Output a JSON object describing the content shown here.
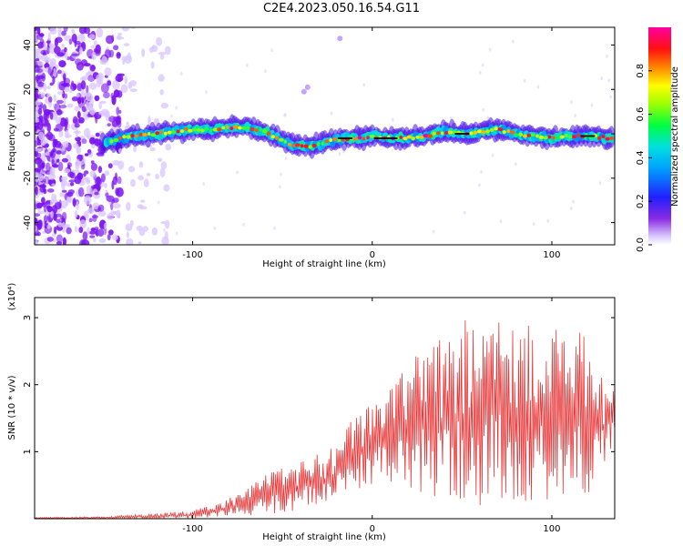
{
  "title": "C2E4.2023.050.16.54.G11",
  "colors": {
    "snr_line": "#e8383a",
    "axis": "#000000",
    "scatter_noise": "#7a12f0"
  },
  "chart_data": [
    {
      "type": "heatmap",
      "xlabel": "Height of straight line (km)",
      "ylabel": "Frequency (Hz)",
      "xlim": [
        -188,
        135
      ],
      "ylim": [
        -50,
        48
      ],
      "xticks": [
        -100,
        0,
        100
      ],
      "yticks": [
        -40,
        -20,
        0,
        20,
        40
      ],
      "colorbar": {
        "label": "Normalized spectral amplitude",
        "range": [
          0.0,
          1.0
        ],
        "ticks": [
          0.0,
          0.2,
          0.4,
          0.6,
          0.8
        ],
        "colormap": "rainbow (purple → blue → cyan → green → yellow → orange → red → magenta)"
      },
      "ridge_center_hz": [
        [
          -148,
          -4
        ],
        [
          -140,
          -2
        ],
        [
          -130,
          -1
        ],
        [
          -120,
          0
        ],
        [
          -110,
          1
        ],
        [
          -100,
          2
        ],
        [
          -90,
          2
        ],
        [
          -80,
          3
        ],
        [
          -70,
          3
        ],
        [
          -60,
          1
        ],
        [
          -52,
          -2
        ],
        [
          -45,
          -5
        ],
        [
          -38,
          -6
        ],
        [
          -30,
          -5
        ],
        [
          -22,
          -3
        ],
        [
          -15,
          -2
        ],
        [
          -5,
          -2
        ],
        [
          0,
          -1
        ],
        [
          10,
          -2
        ],
        [
          20,
          -2
        ],
        [
          30,
          -1
        ],
        [
          40,
          1
        ],
        [
          50,
          0
        ],
        [
          60,
          1
        ],
        [
          70,
          2
        ],
        [
          80,
          0
        ],
        [
          90,
          -1
        ],
        [
          100,
          -2
        ],
        [
          110,
          -1
        ],
        [
          120,
          -1
        ],
        [
          132,
          -2
        ]
      ]
    },
    {
      "type": "line",
      "xlabel": "Height of straight line (km)",
      "ylabel": "SNR (10 * v/v)",
      "y_multiplier": "(x10⁴)",
      "xlim": [
        -188,
        135
      ],
      "ylim": [
        0,
        3.3
      ],
      "xticks": [
        -100,
        0,
        100
      ],
      "yticks": [
        1,
        2,
        3
      ],
      "series": [
        {
          "envelope_max": [
            [
              -188,
              0.02
            ],
            [
              -150,
              0.03
            ],
            [
              -120,
              0.08
            ],
            [
              -100,
              0.12
            ],
            [
              -80,
              0.3
            ],
            [
              -60,
              0.65
            ],
            [
              -40,
              0.9
            ],
            [
              -20,
              1.1
            ],
            [
              -10,
              1.6
            ],
            [
              0,
              1.7
            ],
            [
              10,
              2.0
            ],
            [
              20,
              2.5
            ],
            [
              30,
              2.6
            ],
            [
              40,
              2.8
            ],
            [
              50,
              3.0
            ],
            [
              60,
              3.1
            ],
            [
              70,
              3.25
            ],
            [
              80,
              3.0
            ],
            [
              90,
              3.05
            ],
            [
              100,
              2.9
            ],
            [
              110,
              2.65
            ],
            [
              120,
              2.9
            ],
            [
              125,
              2.2
            ],
            [
              135,
              2.0
            ]
          ],
          "envelope_min": [
            [
              -188,
              0.0
            ],
            [
              -100,
              0.0
            ],
            [
              -50,
              0.05
            ],
            [
              -20,
              0.3
            ],
            [
              0,
              0.5
            ],
            [
              20,
              0.4
            ],
            [
              40,
              0.25
            ],
            [
              60,
              0.2
            ],
            [
              80,
              0.2
            ],
            [
              100,
              0.3
            ],
            [
              120,
              0.25
            ],
            [
              135,
              1.1
            ]
          ]
        }
      ]
    }
  ]
}
